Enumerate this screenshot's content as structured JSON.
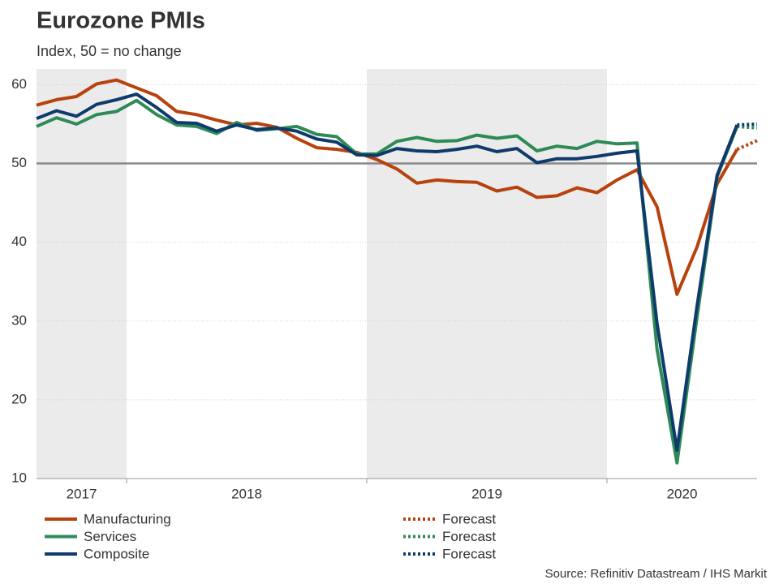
{
  "chart_data": {
    "type": "line",
    "title": "Eurozone PMIs",
    "subtitle": "Index, 50 = no change",
    "source": "Source: Refinitiv Datastream / IHS Markit",
    "categories": [
      null,
      null,
      null,
      null,
      null,
      null,
      null,
      null,
      null,
      null,
      null,
      null,
      null,
      null,
      null,
      null,
      null,
      null,
      null,
      null,
      null,
      null,
      null,
      null,
      null,
      null,
      null,
      null,
      null,
      null,
      null,
      null,
      null,
      null,
      null,
      null,
      null
    ],
    "x_groups": [
      {
        "label": "2017",
        "count": 5,
        "shaded": true
      },
      {
        "label": "2018",
        "count": 12,
        "shaded": false
      },
      {
        "label": "2019",
        "count": 12,
        "shaded": true
      },
      {
        "label": "2020",
        "count": 8,
        "shaded": false
      }
    ],
    "ylim": [
      10,
      62
    ],
    "yticks": [
      10,
      20,
      30,
      40,
      50,
      60
    ],
    "grid": true,
    "reference_line": 50,
    "series": [
      {
        "name": "Manufacturing",
        "color": "#b8420e",
        "dashed": false,
        "values": [
          57.4,
          58.1,
          58.5,
          60.1,
          60.6,
          59.6,
          58.6,
          56.6,
          56.2,
          55.5,
          54.9,
          55.1,
          54.6,
          53.2,
          52.0,
          51.8,
          51.4,
          50.5,
          49.3,
          47.5,
          47.9,
          47.7,
          47.6,
          46.5,
          47.0,
          45.7,
          45.9,
          46.9,
          46.3,
          47.9,
          49.2,
          44.5,
          33.4,
          39.4,
          47.4,
          51.8,
          null
        ]
      },
      {
        "name": "Services",
        "color": "#2e8a56",
        "dashed": false,
        "values": [
          54.7,
          55.8,
          55.0,
          56.2,
          56.6,
          58.0,
          56.2,
          54.9,
          54.7,
          53.8,
          55.2,
          54.2,
          54.4,
          54.7,
          53.7,
          53.4,
          51.2,
          51.2,
          52.8,
          53.3,
          52.8,
          52.9,
          53.6,
          53.2,
          53.5,
          51.6,
          52.2,
          51.9,
          52.8,
          52.5,
          52.6,
          26.4,
          12.0,
          30.5,
          48.3,
          54.7,
          null
        ]
      },
      {
        "name": "Composite",
        "color": "#0e3a6c",
        "dashed": false,
        "values": [
          55.7,
          56.7,
          56.0,
          57.5,
          58.1,
          58.8,
          57.1,
          55.2,
          55.1,
          54.1,
          54.9,
          54.3,
          54.5,
          54.1,
          53.1,
          52.7,
          51.1,
          51.0,
          51.9,
          51.6,
          51.5,
          51.8,
          52.2,
          51.5,
          51.9,
          50.1,
          50.6,
          50.6,
          50.9,
          51.3,
          51.6,
          29.7,
          13.6,
          31.9,
          48.5,
          54.9,
          null
        ]
      },
      {
        "name": "Forecast",
        "color": "#b8420e",
        "dashed": true,
        "values": [
          null,
          null,
          null,
          null,
          null,
          null,
          null,
          null,
          null,
          null,
          null,
          null,
          null,
          null,
          null,
          null,
          null,
          null,
          null,
          null,
          null,
          null,
          null,
          null,
          null,
          null,
          null,
          null,
          null,
          null,
          null,
          null,
          null,
          null,
          null,
          51.8,
          52.9
        ]
      },
      {
        "name": "Forecast",
        "color": "#2e8a56",
        "dashed": true,
        "values": [
          null,
          null,
          null,
          null,
          null,
          null,
          null,
          null,
          null,
          null,
          null,
          null,
          null,
          null,
          null,
          null,
          null,
          null,
          null,
          null,
          null,
          null,
          null,
          null,
          null,
          null,
          null,
          null,
          null,
          null,
          null,
          null,
          null,
          null,
          null,
          54.7,
          54.5
        ]
      },
      {
        "name": "Forecast",
        "color": "#0e3a6c",
        "dashed": true,
        "values": [
          null,
          null,
          null,
          null,
          null,
          null,
          null,
          null,
          null,
          null,
          null,
          null,
          null,
          null,
          null,
          null,
          null,
          null,
          null,
          null,
          null,
          null,
          null,
          null,
          null,
          null,
          null,
          null,
          null,
          null,
          null,
          null,
          null,
          null,
          null,
          54.9,
          55.0
        ]
      }
    ]
  }
}
